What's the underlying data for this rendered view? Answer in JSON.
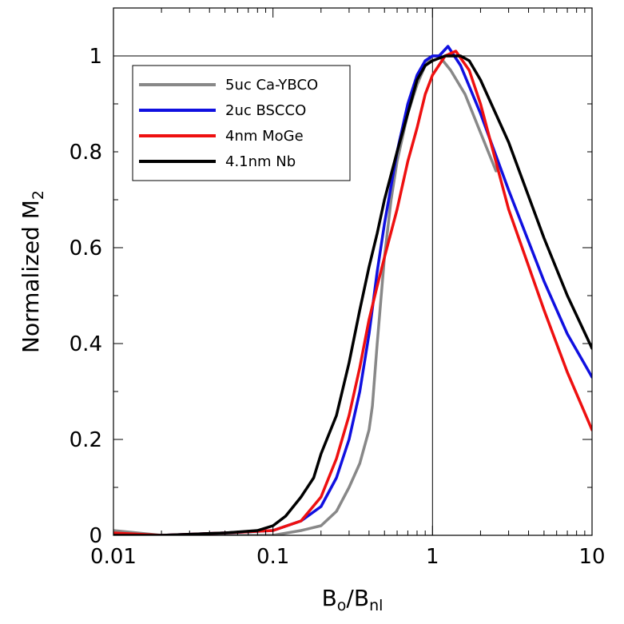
{
  "chart_data": {
    "type": "line",
    "xscale": "log",
    "xlim": [
      0.01,
      10
    ],
    "ylim": [
      0,
      1.1
    ],
    "xlabel": {
      "main": "B",
      "sub1": "o",
      "mid": "/B",
      "sub2": "nl"
    },
    "ylabel": {
      "main": "Normalized M",
      "sub": "2"
    },
    "xticks": [
      {
        "value": 0.01,
        "label": "0.01"
      },
      {
        "value": 0.1,
        "label": "0.1"
      },
      {
        "value": 1,
        "label": "1"
      },
      {
        "value": 10,
        "label": "10"
      }
    ],
    "yticks": [
      {
        "value": 0,
        "label": "0"
      },
      {
        "value": 0.2,
        "label": "0.2"
      },
      {
        "value": 0.4,
        "label": "0.4"
      },
      {
        "value": 0.6,
        "label": "0.6"
      },
      {
        "value": 0.8,
        "label": "0.8"
      },
      {
        "value": 1,
        "label": "1"
      }
    ],
    "reference_lines": {
      "x": 1,
      "y": 1
    },
    "legend_position": "top-left",
    "series": [
      {
        "name": "5uc Ca-YBCO",
        "color": "#888888",
        "x": [
          0.01,
          0.02,
          0.05,
          0.1,
          0.15,
          0.2,
          0.25,
          0.3,
          0.35,
          0.4,
          0.42,
          0.45,
          0.5,
          0.55,
          0.6,
          0.7,
          0.8,
          0.9,
          1.0,
          1.1,
          1.3,
          1.6,
          2.0,
          2.5
        ],
        "y": [
          0.01,
          0.0,
          0.0,
          0.0,
          0.01,
          0.02,
          0.05,
          0.1,
          0.15,
          0.22,
          0.27,
          0.4,
          0.58,
          0.7,
          0.78,
          0.88,
          0.94,
          0.98,
          1.0,
          1.0,
          0.97,
          0.92,
          0.84,
          0.76
        ]
      },
      {
        "name": "2uc BSCCO",
        "color": "#1010e0",
        "x": [
          0.01,
          0.02,
          0.05,
          0.1,
          0.15,
          0.2,
          0.25,
          0.3,
          0.35,
          0.4,
          0.45,
          0.5,
          0.6,
          0.7,
          0.8,
          0.9,
          1.0,
          1.1,
          1.25,
          1.5,
          2.0,
          3.0,
          5.0,
          7.0,
          10.0
        ],
        "y": [
          0.0,
          0.0,
          0.005,
          0.01,
          0.03,
          0.06,
          0.12,
          0.2,
          0.3,
          0.42,
          0.55,
          0.65,
          0.8,
          0.9,
          0.96,
          0.99,
          1.0,
          1.0,
          1.02,
          0.98,
          0.88,
          0.72,
          0.53,
          0.42,
          0.33
        ]
      },
      {
        "name": "4nm MoGe",
        "color": "#ee1010",
        "x": [
          0.01,
          0.02,
          0.05,
          0.1,
          0.15,
          0.2,
          0.25,
          0.3,
          0.35,
          0.4,
          0.45,
          0.5,
          0.6,
          0.7,
          0.8,
          0.9,
          1.0,
          1.2,
          1.4,
          1.7,
          2.0,
          3.0,
          5.0,
          7.0,
          10.0
        ],
        "y": [
          0.005,
          0.0,
          0.005,
          0.01,
          0.03,
          0.08,
          0.16,
          0.25,
          0.35,
          0.45,
          0.52,
          0.58,
          0.68,
          0.78,
          0.85,
          0.92,
          0.96,
          1.0,
          1.01,
          0.97,
          0.9,
          0.68,
          0.47,
          0.34,
          0.22
        ]
      },
      {
        "name": "4.1nm Nb",
        "color": "#000000",
        "x": [
          0.01,
          0.02,
          0.05,
          0.08,
          0.1,
          0.12,
          0.15,
          0.18,
          0.2,
          0.25,
          0.3,
          0.35,
          0.4,
          0.45,
          0.5,
          0.6,
          0.7,
          0.8,
          0.9,
          1.0,
          1.2,
          1.5,
          1.7,
          2.0,
          3.0,
          5.0,
          7.0,
          10.0
        ],
        "y": [
          0.0,
          0.0,
          0.005,
          0.01,
          0.02,
          0.04,
          0.08,
          0.12,
          0.17,
          0.25,
          0.36,
          0.47,
          0.56,
          0.63,
          0.7,
          0.8,
          0.88,
          0.95,
          0.98,
          0.99,
          1.0,
          1.0,
          0.99,
          0.95,
          0.82,
          0.62,
          0.5,
          0.39
        ]
      }
    ]
  }
}
